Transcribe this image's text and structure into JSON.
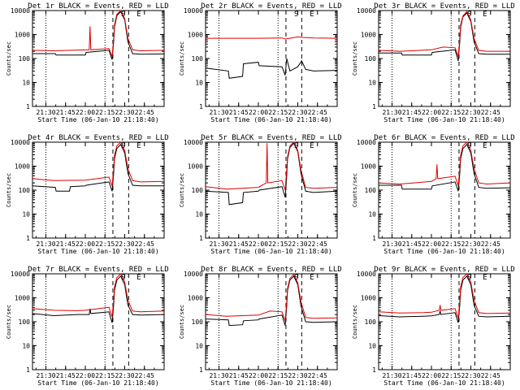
{
  "figure": {
    "xlabel": "Start Time (06-Jan-10 21:18:40)",
    "ylabel": "Counts/sec",
    "xtick_labels": [
      "21:30",
      "21:45",
      "22:00",
      "22:15",
      "22:30",
      "22:45"
    ],
    "ytick_labels": [
      "1",
      "10",
      "100",
      "1000",
      "10000"
    ],
    "band_letters": [
      "S",
      "E"
    ]
  },
  "colors": {
    "black_series": "#000000",
    "red_series": "#e00000"
  },
  "chart_data": [
    {
      "type": "line",
      "title": "Det 1r BLACK = Events, RED = LLD",
      "xlabel": "Start Time (06-Jan-10 21:18:40)",
      "ylabel": "Counts/sec",
      "xlim": [
        21.33,
        23.0
      ],
      "ylim": [
        1,
        10000
      ],
      "yscale": "log",
      "x_units": "hours",
      "markers": {
        "dotted": [
          21.5,
          22.25
        ],
        "dashed": [
          22.35,
          22.55
        ]
      },
      "series": [
        {
          "name": "Events",
          "color": "black",
          "x": [
            21.33,
            21.62,
            21.63,
            22.0,
            22.01,
            22.3,
            22.34,
            22.36,
            22.37,
            22.4,
            22.45,
            22.5,
            22.54,
            22.6,
            22.7,
            23.0
          ],
          "y": [
            160,
            160,
            140,
            140,
            180,
            220,
            90,
            500,
            2000,
            6000,
            9000,
            4000,
            500,
            160,
            150,
            155
          ]
        },
        {
          "name": "LLD",
          "color": "red",
          "x": [
            21.33,
            21.6,
            22.05,
            22.06,
            22.07,
            22.3,
            22.34,
            22.36,
            22.37,
            22.4,
            22.45,
            22.5,
            22.54,
            22.6,
            22.7,
            23.0
          ],
          "y": [
            220,
            210,
            230,
            2200,
            230,
            260,
            120,
            700,
            2500,
            7000,
            10000,
            4500,
            700,
            230,
            210,
            220
          ]
        }
      ]
    },
    {
      "type": "line",
      "title": "Det 2r BLACK = Events, RED = LLD",
      "xlabel": "Start Time (06-Jan-10 21:18:40)",
      "ylabel": "Counts/sec",
      "xlim": [
        21.33,
        23.0
      ],
      "ylim": [
        1,
        10000
      ],
      "yscale": "log",
      "x_units": "hours",
      "markers": {
        "dotted": [
          21.5,
          22.25
        ],
        "dashed": [
          22.35,
          22.55
        ]
      },
      "series": [
        {
          "name": "Events",
          "color": "black",
          "x": [
            21.33,
            21.62,
            21.63,
            21.8,
            21.81,
            22.0,
            22.01,
            22.3,
            22.34,
            22.36,
            22.4,
            22.5,
            22.55,
            22.6,
            22.7,
            23.0
          ],
          "y": [
            40,
            30,
            15,
            18,
            60,
            70,
            50,
            45,
            20,
            100,
            30,
            45,
            80,
            35,
            30,
            32
          ]
        },
        {
          "name": "LLD",
          "color": "red",
          "x": [
            21.33,
            22.0,
            22.3,
            22.34,
            22.4,
            22.5,
            22.55,
            22.7,
            23.0
          ],
          "y": [
            700,
            700,
            720,
            650,
            700,
            800,
            760,
            720,
            700
          ]
        }
      ]
    },
    {
      "type": "line",
      "title": "Det 3r BLACK = Events, RED = LLD",
      "xlabel": "Start Time (06-Jan-10 21:18:40)",
      "ylabel": "Counts/sec",
      "xlim": [
        21.33,
        23.0
      ],
      "ylim": [
        1,
        10000
      ],
      "yscale": "log",
      "x_units": "hours",
      "markers": {
        "dotted": [
          21.5,
          22.25
        ],
        "dashed": [
          22.35,
          22.55
        ]
      },
      "series": [
        {
          "name": "Events",
          "color": "black",
          "x": [
            21.33,
            21.62,
            21.63,
            22.0,
            22.01,
            22.3,
            22.34,
            22.36,
            22.37,
            22.4,
            22.45,
            22.5,
            22.54,
            22.6,
            22.7,
            23.0
          ],
          "y": [
            170,
            170,
            140,
            140,
            180,
            230,
            80,
            500,
            2000,
            5500,
            8000,
            3500,
            500,
            160,
            150,
            150
          ]
        },
        {
          "name": "LLD",
          "color": "red",
          "x": [
            21.33,
            21.6,
            22.0,
            22.15,
            22.3,
            22.34,
            22.36,
            22.37,
            22.4,
            22.45,
            22.5,
            22.54,
            22.6,
            22.7,
            23.0
          ],
          "y": [
            220,
            200,
            230,
            300,
            280,
            120,
            700,
            2500,
            6000,
            9000,
            4000,
            700,
            220,
            200,
            200
          ]
        }
      ]
    },
    {
      "type": "line",
      "title": "Det 4r BLACK = Events, RED = LLD",
      "xlabel": "Start Time (06-Jan-10 21:18:40)",
      "ylabel": "Counts/sec",
      "xlim": [
        21.33,
        23.0
      ],
      "ylim": [
        1,
        10000
      ],
      "yscale": "log",
      "x_units": "hours",
      "markers": {
        "dotted": [
          21.5,
          22.25
        ],
        "dashed": [
          22.35,
          22.55
        ]
      },
      "series": [
        {
          "name": "Events",
          "color": "black",
          "x": [
            21.33,
            21.62,
            21.63,
            21.8,
            21.81,
            22.0,
            22.01,
            22.3,
            22.34,
            22.36,
            22.37,
            22.4,
            22.45,
            22.5,
            22.54,
            22.6,
            22.7,
            23.0
          ],
          "y": [
            150,
            130,
            90,
            90,
            140,
            150,
            160,
            220,
            90,
            500,
            2000,
            5500,
            8000,
            3500,
            500,
            160,
            150,
            150
          ]
        },
        {
          "name": "LLD",
          "color": "red",
          "x": [
            21.33,
            21.6,
            22.0,
            22.3,
            22.34,
            22.36,
            22.37,
            22.4,
            22.45,
            22.5,
            22.54,
            22.6,
            22.7,
            23.0
          ],
          "y": [
            300,
            250,
            260,
            350,
            150,
            800,
            2800,
            7000,
            10000,
            4500,
            800,
            250,
            220,
            230
          ]
        }
      ]
    },
    {
      "type": "line",
      "title": "Det 5r BLACK = Events, RED = LLD",
      "xlabel": "Start Time (06-Jan-10 21:18:40)",
      "ylabel": "Counts/sec",
      "xlim": [
        21.33,
        23.0
      ],
      "ylim": [
        1,
        10000
      ],
      "yscale": "log",
      "x_units": "hours",
      "markers": {
        "dotted": [
          21.5,
          22.25
        ],
        "dashed": [
          22.35,
          22.55
        ]
      },
      "series": [
        {
          "name": "Events",
          "color": "black",
          "x": [
            21.33,
            21.62,
            21.63,
            21.8,
            21.81,
            22.0,
            22.01,
            22.3,
            22.34,
            22.36,
            22.37,
            22.4,
            22.45,
            22.5,
            22.54,
            22.6,
            22.7,
            23.0
          ],
          "y": [
            90,
            80,
            25,
            30,
            80,
            90,
            100,
            140,
            50,
            400,
            2000,
            6000,
            9000,
            4000,
            500,
            90,
            80,
            90
          ]
        },
        {
          "name": "LLD",
          "color": "red",
          "x": [
            21.33,
            21.6,
            22.0,
            22.1,
            22.11,
            22.12,
            22.3,
            22.34,
            22.36,
            22.37,
            22.4,
            22.45,
            22.5,
            22.54,
            22.6,
            22.7,
            23.0
          ],
          "y": [
            140,
            110,
            130,
            200,
            9000,
            200,
            250,
            100,
            700,
            2500,
            7000,
            10000,
            4500,
            700,
            130,
            120,
            130
          ]
        }
      ]
    },
    {
      "type": "line",
      "title": "Det 6r BLACK = Events, RED = LLD",
      "xlabel": "Start Time (06-Jan-10 21:18:40)",
      "ylabel": "Counts/sec",
      "xlim": [
        21.33,
        23.0
      ],
      "ylim": [
        1,
        10000
      ],
      "yscale": "log",
      "x_units": "hours",
      "markers": {
        "dotted": [
          21.5,
          22.25
        ],
        "dashed": [
          22.35,
          22.55
        ]
      },
      "series": [
        {
          "name": "Events",
          "color": "black",
          "x": [
            21.33,
            21.62,
            21.63,
            22.0,
            22.01,
            22.3,
            22.34,
            22.36,
            22.37,
            22.4,
            22.45,
            22.5,
            22.54,
            22.6,
            22.7,
            23.0
          ],
          "y": [
            160,
            160,
            110,
            110,
            150,
            220,
            90,
            500,
            2000,
            5500,
            8000,
            3500,
            500,
            130,
            120,
            125
          ]
        },
        {
          "name": "LLD",
          "color": "red",
          "x": [
            21.33,
            21.6,
            22.0,
            22.06,
            22.07,
            22.08,
            22.3,
            22.34,
            22.36,
            22.37,
            22.4,
            22.45,
            22.5,
            22.54,
            22.6,
            22.7,
            23.0
          ],
          "y": [
            200,
            180,
            230,
            300,
            1200,
            300,
            380,
            150,
            800,
            2800,
            7000,
            10000,
            4500,
            800,
            200,
            180,
            200
          ]
        }
      ]
    },
    {
      "type": "line",
      "title": "Det 7r BLACK = Events, RED = LLD",
      "xlabel": "Start Time (06-Jan-10 21:18:40)",
      "ylabel": "Counts/sec",
      "xlim": [
        21.33,
        23.0
      ],
      "ylim": [
        1,
        10000
      ],
      "yscale": "log",
      "x_units": "hours",
      "markers": {
        "dotted": [
          21.5,
          22.25
        ],
        "dashed": [
          22.35,
          22.55
        ]
      },
      "series": [
        {
          "name": "Events",
          "color": "black",
          "x": [
            21.33,
            21.6,
            21.9,
            22.05,
            22.06,
            22.07,
            22.3,
            22.34,
            22.36,
            22.37,
            22.4,
            22.45,
            22.5,
            22.54,
            22.6,
            22.7,
            23.0
          ],
          "y": [
            220,
            180,
            200,
            200,
            350,
            220,
            260,
            90,
            500,
            2000,
            5500,
            8000,
            3500,
            500,
            200,
            190,
            200
          ]
        },
        {
          "name": "LLD",
          "color": "red",
          "x": [
            21.33,
            21.6,
            21.9,
            22.0,
            22.3,
            22.34,
            22.36,
            22.37,
            22.4,
            22.45,
            22.5,
            22.54,
            22.6,
            22.7,
            23.0
          ],
          "y": [
            350,
            300,
            290,
            300,
            400,
            160,
            800,
            2800,
            7000,
            10000,
            4500,
            800,
            280,
            260,
            280
          ]
        }
      ]
    },
    {
      "type": "line",
      "title": "Det 8r BLACK = Events, RED = LLD",
      "xlabel": "Start Time (06-Jan-10 21:18:40)",
      "ylabel": "Counts/sec",
      "xlim": [
        21.33,
        23.0
      ],
      "ylim": [
        1,
        10000
      ],
      "yscale": "log",
      "x_units": "hours",
      "markers": {
        "dotted": [
          21.5,
          22.25
        ],
        "dashed": [
          22.35,
          22.55
        ]
      },
      "series": [
        {
          "name": "Events",
          "color": "black",
          "x": [
            21.33,
            21.62,
            21.63,
            21.8,
            21.81,
            22.0,
            22.01,
            22.3,
            22.34,
            22.36,
            22.37,
            22.4,
            22.45,
            22.5,
            22.54,
            22.6,
            22.7,
            23.0
          ],
          "y": [
            130,
            120,
            70,
            75,
            110,
            120,
            130,
            190,
            70,
            450,
            2000,
            5500,
            8000,
            3500,
            450,
            100,
            95,
            100
          ]
        },
        {
          "name": "LLD",
          "color": "red",
          "x": [
            21.33,
            21.6,
            22.0,
            22.15,
            22.3,
            22.34,
            22.36,
            22.37,
            22.4,
            22.45,
            22.5,
            22.54,
            22.6,
            22.7,
            23.0
          ],
          "y": [
            200,
            170,
            190,
            280,
            260,
            110,
            700,
            2500,
            6500,
            9500,
            4200,
            700,
            150,
            140,
            145
          ]
        }
      ]
    },
    {
      "type": "line",
      "title": "Det 9r BLACK = Events, RED = LLD",
      "xlabel": "Start Time (06-Jan-10 21:18:40)",
      "ylabel": "Counts/sec",
      "xlim": [
        21.33,
        23.0
      ],
      "ylim": [
        1,
        10000
      ],
      "yscale": "log",
      "x_units": "hours",
      "markers": {
        "dotted": [
          21.5,
          22.25
        ],
        "dashed": [
          22.35,
          22.55
        ]
      },
      "series": [
        {
          "name": "Events",
          "color": "black",
          "x": [
            21.33,
            21.6,
            21.9,
            22.0,
            22.1,
            22.11,
            22.12,
            22.3,
            22.34,
            22.36,
            22.37,
            22.4,
            22.45,
            22.5,
            22.54,
            22.6,
            22.7,
            23.0
          ],
          "y": [
            180,
            160,
            170,
            175,
            200,
            280,
            200,
            240,
            90,
            500,
            2000,
            5500,
            8000,
            3500,
            500,
            170,
            160,
            170
          ]
        },
        {
          "name": "LLD",
          "color": "red",
          "x": [
            21.33,
            21.6,
            21.9,
            22.0,
            22.1,
            22.11,
            22.12,
            22.3,
            22.34,
            22.36,
            22.37,
            22.4,
            22.45,
            22.5,
            22.54,
            22.6,
            22.7,
            23.0
          ],
          "y": [
            260,
            230,
            240,
            250,
            300,
            500,
            300,
            350,
            140,
            800,
            2800,
            7000,
            10000,
            4500,
            800,
            240,
            220,
            230
          ]
        }
      ]
    }
  ]
}
